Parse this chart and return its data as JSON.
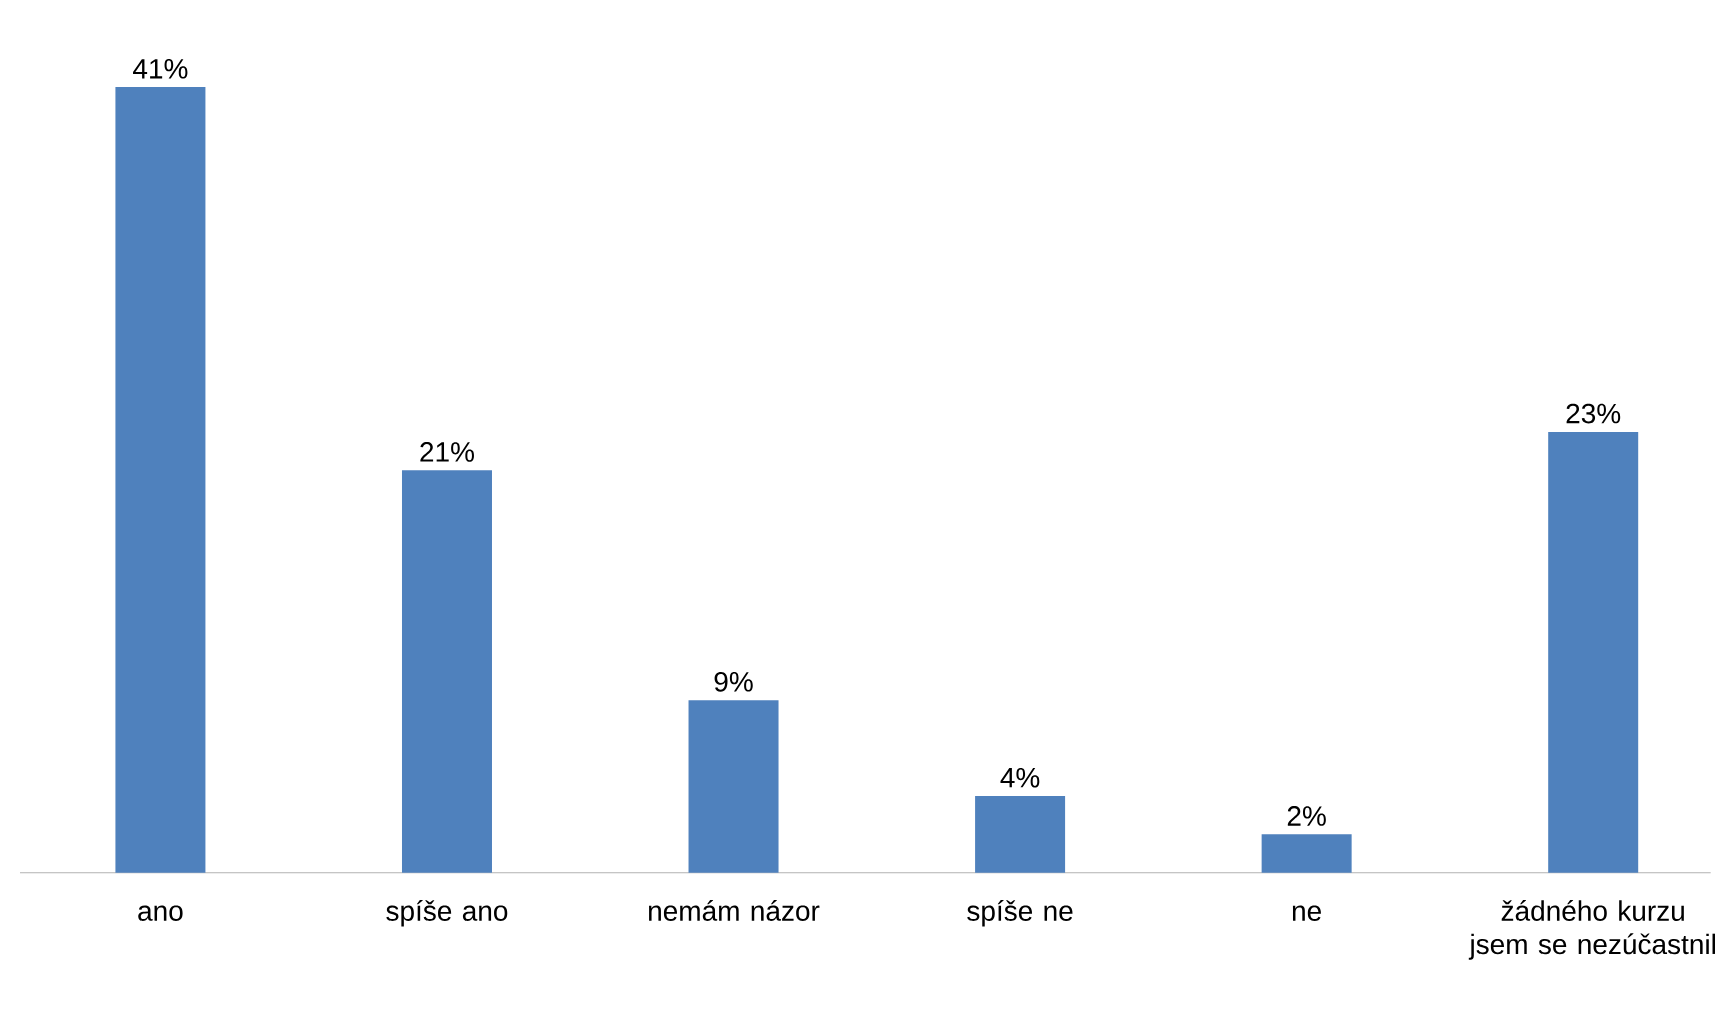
{
  "chart_data": {
    "type": "bar",
    "categories": [
      "ano",
      "spíše ano",
      "nemám názor",
      "spíše ne",
      "ne",
      "žádného kurzu jsem se nezúčastnil"
    ],
    "values": [
      41,
      21,
      9,
      4,
      2,
      23
    ],
    "value_labels": [
      "41%",
      "21%",
      "9%",
      "4%",
      "2%",
      "23%"
    ],
    "color": "#4f81bd"
  }
}
